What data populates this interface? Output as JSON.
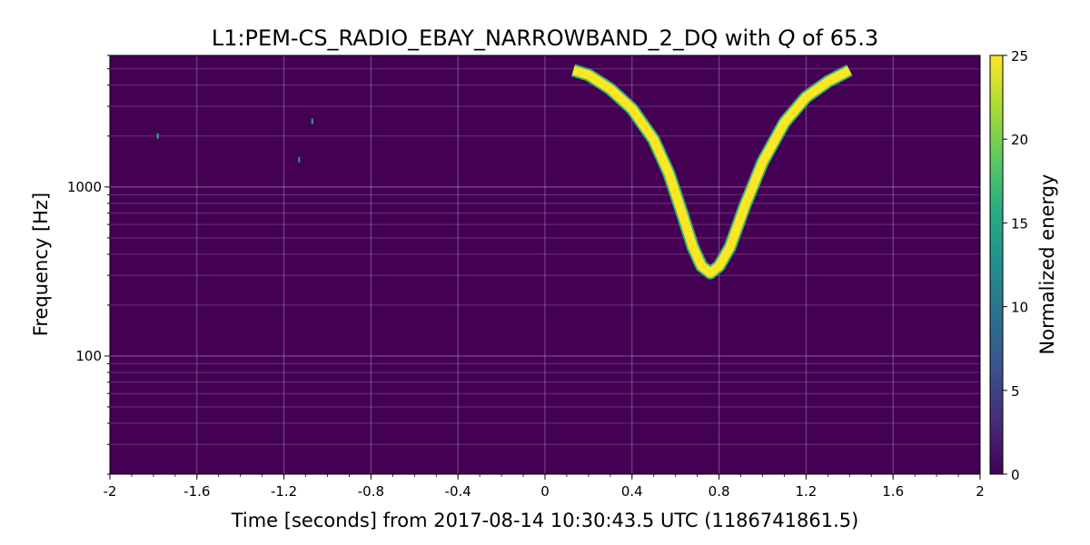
{
  "chart_data": {
    "type": "heatmap",
    "title_prefix": "L1:PEM-CS_RADIO_EBAY_NARROWBAND_2_DQ with ",
    "title_q": "Q",
    "title_suffix": " of 65.3",
    "xlabel": "Time [seconds] from 2017-08-14 10:30:43.5 UTC (1186741861.5)",
    "ylabel": "Frequency [Hz]",
    "colorbar_label": "Normalized energy",
    "xlim": [
      -2,
      2
    ],
    "ylim": [
      20,
      6000
    ],
    "yscale": "log",
    "clim": [
      0,
      25
    ],
    "colormap": "viridis",
    "background_color": "#440154",
    "grid": true,
    "x_ticks": [
      {
        "value": -2,
        "label": "-2"
      },
      {
        "value": -1.6,
        "label": "-1.6"
      },
      {
        "value": -1.2,
        "label": "-1.2"
      },
      {
        "value": -0.8,
        "label": "-0.8"
      },
      {
        "value": -0.4,
        "label": "-0.4"
      },
      {
        "value": 0,
        "label": "0"
      },
      {
        "value": 0.4,
        "label": "0.4"
      },
      {
        "value": 0.8,
        "label": "0.8"
      },
      {
        "value": 1.2,
        "label": "1.2"
      },
      {
        "value": 1.6,
        "label": "1.6"
      },
      {
        "value": 2,
        "label": "2"
      }
    ],
    "y_ticks": [
      {
        "value": 100,
        "label": "100"
      },
      {
        "value": 1000,
        "label": "1000"
      }
    ],
    "colorbar_ticks": [
      {
        "value": 0,
        "label": "0"
      },
      {
        "value": 5,
        "label": "5"
      },
      {
        "value": 10,
        "label": "10"
      },
      {
        "value": 15,
        "label": "15"
      },
      {
        "value": 20,
        "label": "20"
      },
      {
        "value": 25,
        "label": "25"
      }
    ],
    "track": {
      "description": "V-shaped high-energy chirp",
      "energy": 25,
      "edge_energy": 17,
      "points": [
        {
          "t": 0.13,
          "f": 4900
        },
        {
          "t": 0.2,
          "f": 4600
        },
        {
          "t": 0.3,
          "f": 3800
        },
        {
          "t": 0.4,
          "f": 2900
        },
        {
          "t": 0.5,
          "f": 1900
        },
        {
          "t": 0.57,
          "f": 1200
        },
        {
          "t": 0.63,
          "f": 700
        },
        {
          "t": 0.68,
          "f": 440
        },
        {
          "t": 0.72,
          "f": 340
        },
        {
          "t": 0.76,
          "f": 310
        },
        {
          "t": 0.8,
          "f": 340
        },
        {
          "t": 0.85,
          "f": 440
        },
        {
          "t": 0.92,
          "f": 780
        },
        {
          "t": 1.0,
          "f": 1400
        },
        {
          "t": 1.1,
          "f": 2400
        },
        {
          "t": 1.2,
          "f": 3400
        },
        {
          "t": 1.3,
          "f": 4200
        },
        {
          "t": 1.4,
          "f": 4900
        }
      ]
    },
    "pixels": [
      {
        "t": -1.78,
        "f": 2000,
        "energy": 16
      },
      {
        "t": -1.07,
        "f": 2450,
        "energy": 16
      },
      {
        "t": -1.13,
        "f": 1450,
        "energy": 15
      }
    ]
  }
}
